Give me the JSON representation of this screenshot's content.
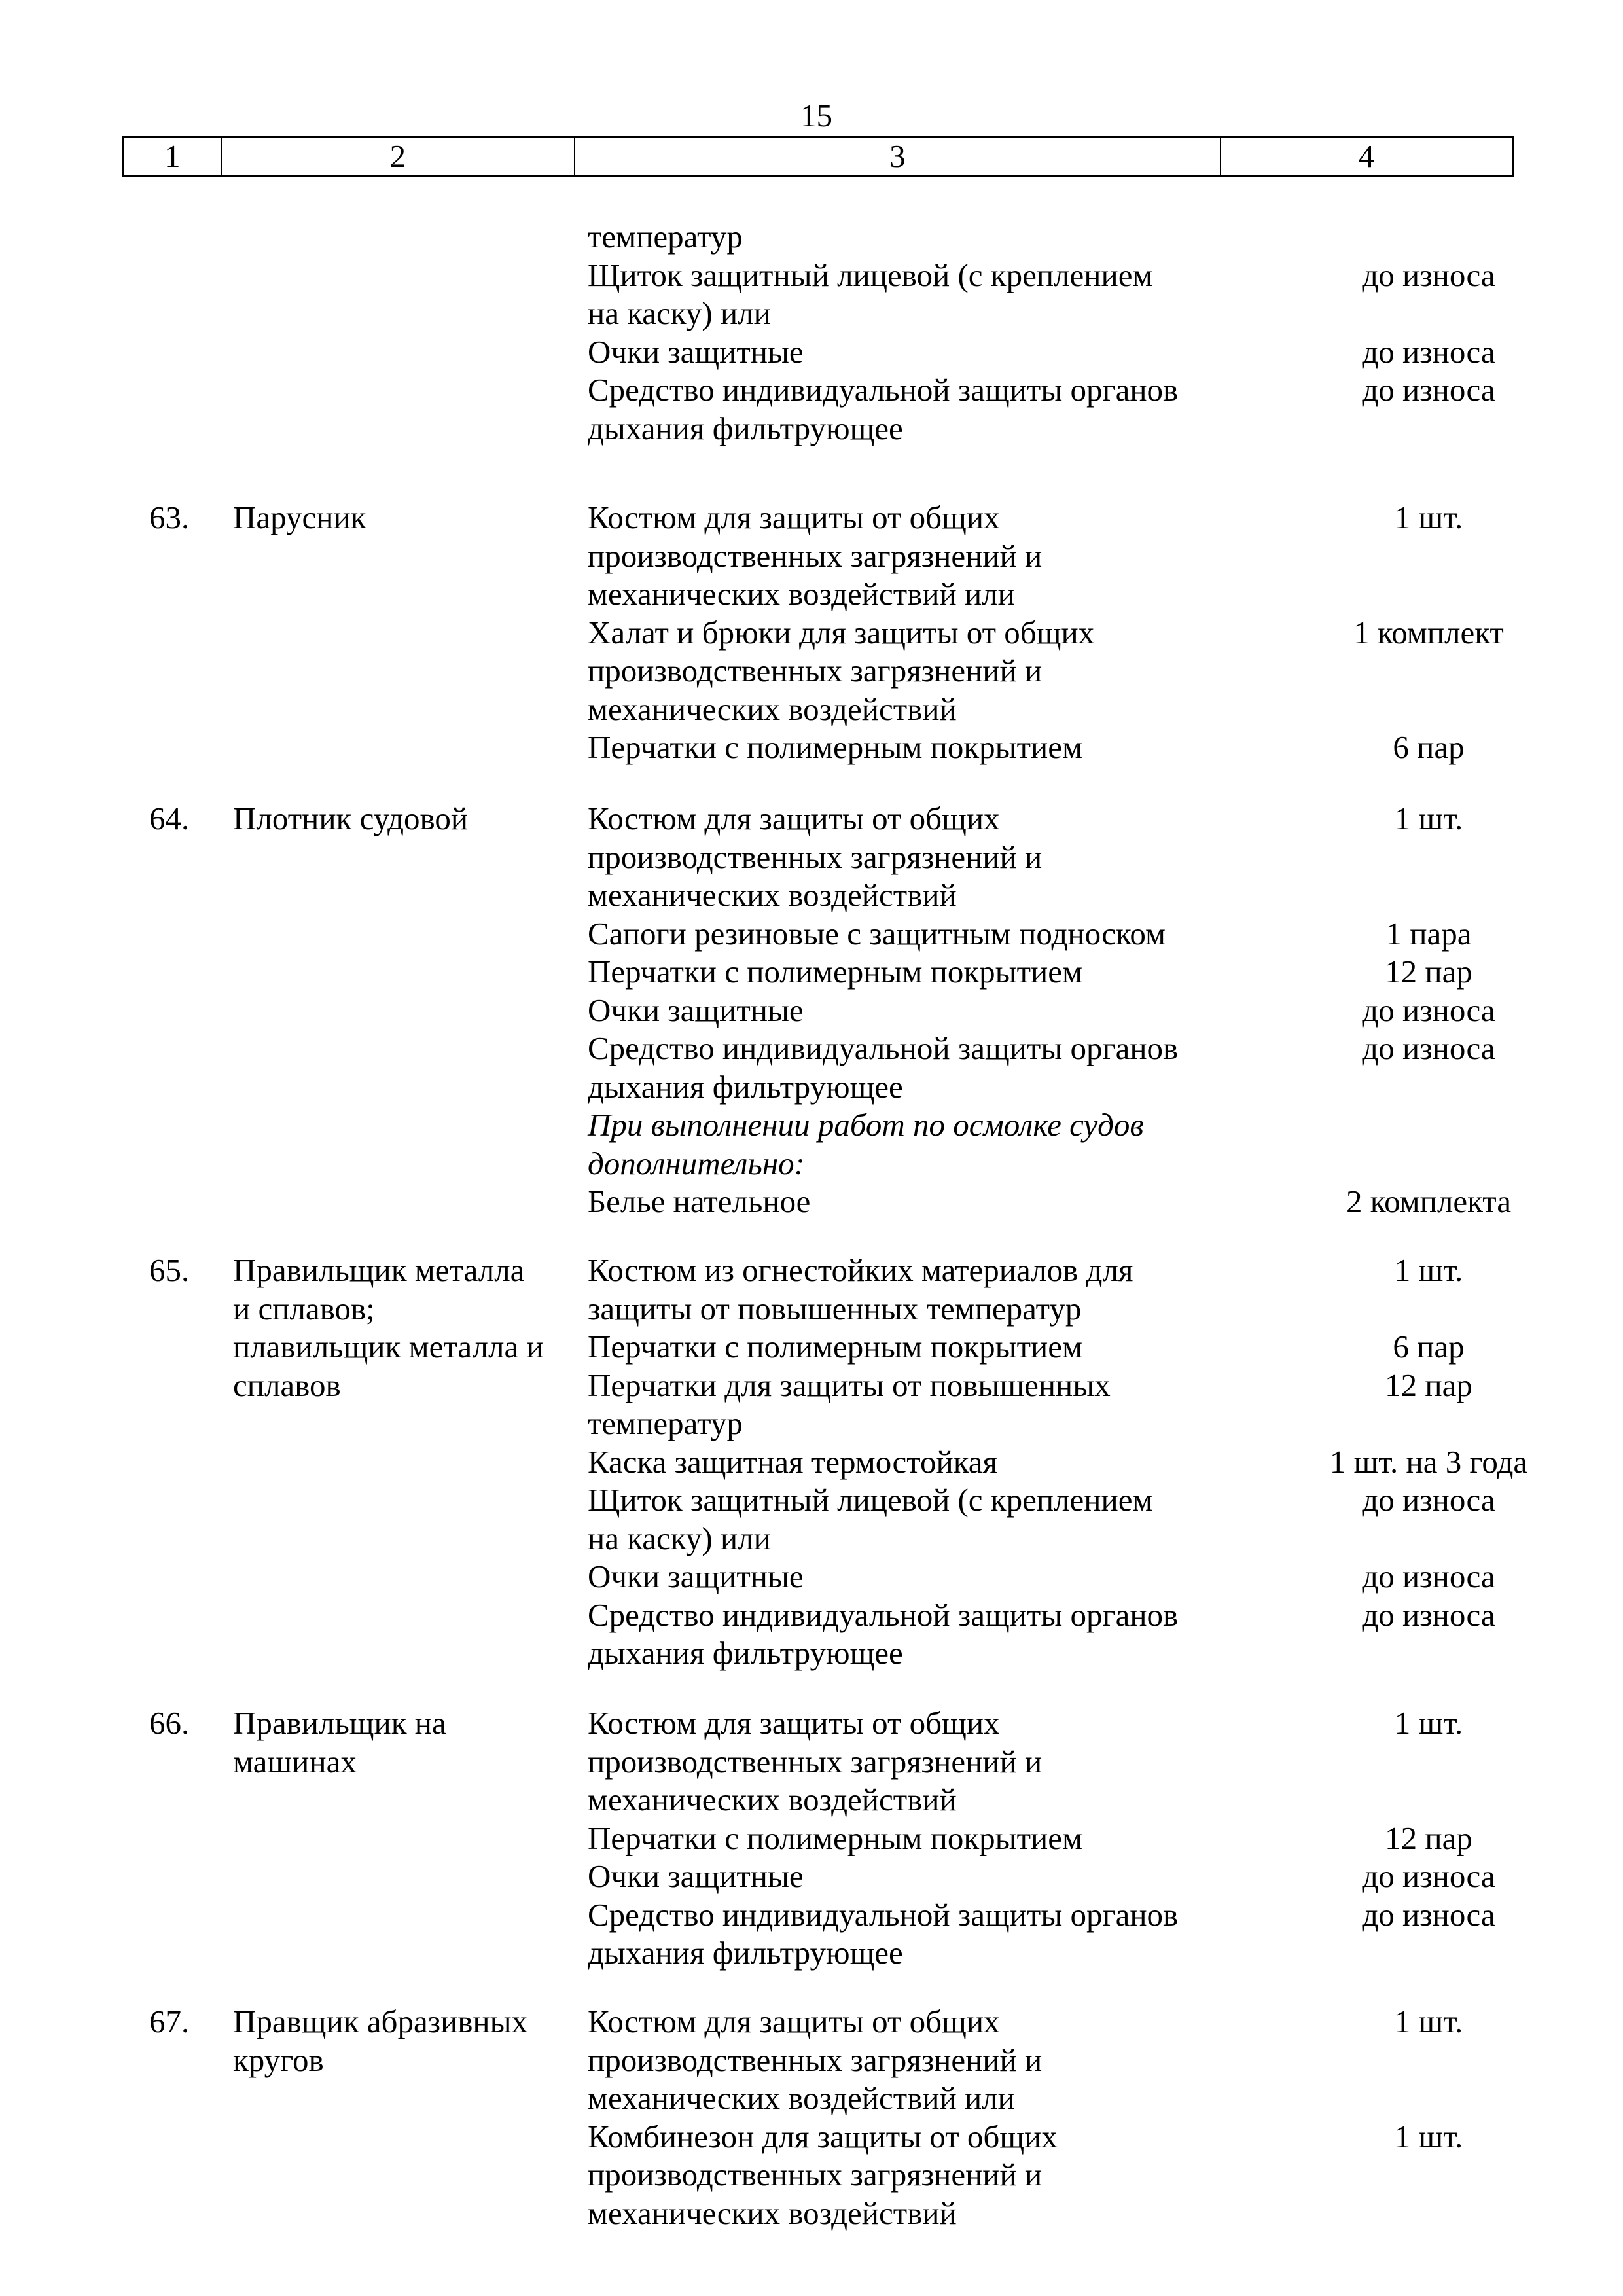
{
  "page_number": "15",
  "header": [
    "1",
    "2",
    "3",
    "4"
  ],
  "groups": [
    {
      "num": "",
      "job": [],
      "items": [
        {
          "lines": [
            "температур"
          ],
          "qty": ""
        },
        {
          "lines": [
            "Щиток защитный лицевой (с креплением",
            "на каску) или"
          ],
          "qty": "до износа"
        },
        {
          "lines": [
            "Очки защитные"
          ],
          "qty": "до износа"
        },
        {
          "lines": [
            "Средство индивидуальной защиты органов",
            "дыхания фильтрующее"
          ],
          "qty": "до износа"
        }
      ]
    },
    {
      "num": "63.",
      "job": [
        "Парусник"
      ],
      "items": [
        {
          "lines": [
            "Костюм для защиты от общих",
            "производственных загрязнений и",
            "механических воздействий или"
          ],
          "qty": "1 шт."
        },
        {
          "lines": [
            "Халат и брюки для защиты от общих",
            "производственных загрязнений и",
            "механических воздействий"
          ],
          "qty": "1 комплект"
        },
        {
          "lines": [
            "Перчатки с полимерным покрытием"
          ],
          "qty": "6 пар"
        }
      ]
    },
    {
      "num": "64.",
      "job": [
        "Плотник судовой"
      ],
      "items": [
        {
          "lines": [
            "Костюм для защиты от общих",
            "производственных загрязнений и",
            "механических воздействий"
          ],
          "qty": "1 шт."
        },
        {
          "lines": [
            "Сапоги резиновые с защитным подноском"
          ],
          "qty": "1 пара"
        },
        {
          "lines": [
            "Перчатки с полимерным покрытием"
          ],
          "qty": "12 пар"
        },
        {
          "lines": [
            "Очки защитные"
          ],
          "qty": "до износа"
        },
        {
          "lines": [
            "Средство индивидуальной защиты органов",
            "дыхания фильтрующее"
          ],
          "qty": "до износа"
        },
        {
          "lines": [
            "При выполнении работ по осмолке судов",
            "дополнительно:"
          ],
          "qty": "",
          "italic": true
        },
        {
          "lines": [
            "Белье нательное"
          ],
          "qty": "2 комплекта"
        }
      ]
    },
    {
      "num": "65.",
      "job": [
        "Правильщик металла",
        "и сплавов;",
        "плавильщик металла и",
        "сплавов"
      ],
      "items": [
        {
          "lines": [
            "Костюм из огнестойких материалов для",
            "защиты от повышенных температур"
          ],
          "qty": "1 шт."
        },
        {
          "lines": [
            "Перчатки с полимерным покрытием"
          ],
          "qty": "6 пар"
        },
        {
          "lines": [
            "Перчатки для защиты от повышенных",
            "температур"
          ],
          "qty": "12 пар"
        },
        {
          "lines": [
            "Каска защитная термостойкая"
          ],
          "qty": "1 шт. на 3 года"
        },
        {
          "lines": [
            "Щиток защитный лицевой (с креплением",
            "на каску) или"
          ],
          "qty": "до износа"
        },
        {
          "lines": [
            "Очки защитные"
          ],
          "qty": "до износа"
        },
        {
          "lines": [
            "Средство индивидуальной защиты органов",
            "дыхания фильтрующее"
          ],
          "qty": "до износа"
        }
      ]
    },
    {
      "num": "66.",
      "job": [
        "Правильщик на",
        "машинах"
      ],
      "items": [
        {
          "lines": [
            "Костюм для защиты от общих",
            "производственных загрязнений и",
            "механических воздействий"
          ],
          "qty": "1 шт."
        },
        {
          "lines": [
            "Перчатки с полимерным покрытием"
          ],
          "qty": "12 пар"
        },
        {
          "lines": [
            "Очки защитные"
          ],
          "qty": "до износа"
        },
        {
          "lines": [
            "Средство индивидуальной защиты органов",
            "дыхания фильтрующее"
          ],
          "qty": "до износа"
        }
      ]
    },
    {
      "num": "67.",
      "job": [
        "Правщик абразивных",
        "кругов"
      ],
      "items": [
        {
          "lines": [
            "Костюм для защиты от общих",
            "производственных загрязнений и",
            "механических воздействий или"
          ],
          "qty": "1 шт."
        },
        {
          "lines": [
            "Комбинезон для защиты от общих",
            "производственных загрязнений и",
            "механических воздействий"
          ],
          "qty": "1 шт."
        }
      ]
    }
  ]
}
